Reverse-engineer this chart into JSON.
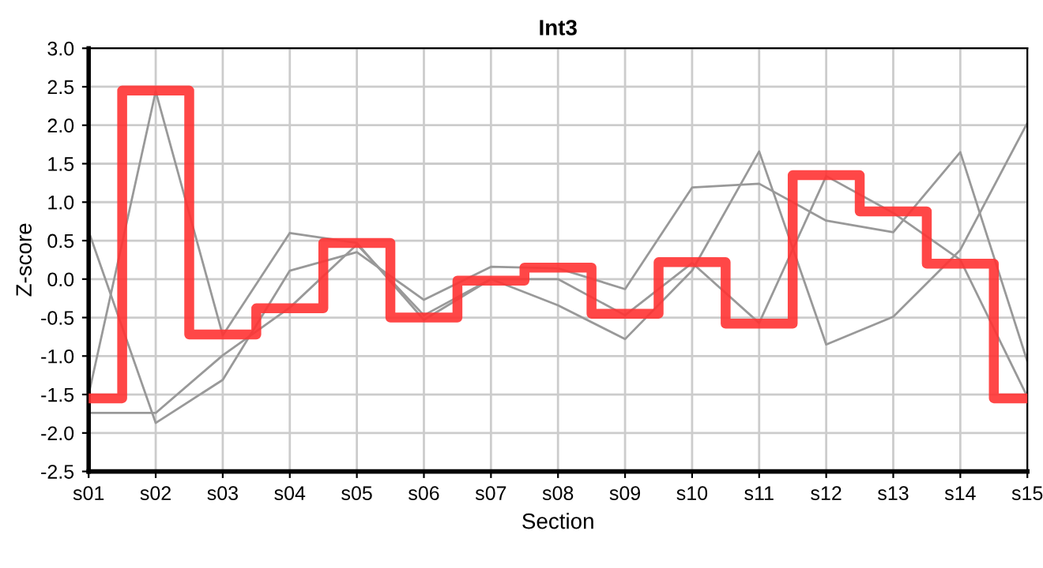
{
  "chart_data": {
    "type": "line",
    "title": "Int3",
    "xlabel": "Section",
    "ylabel": "Z-score",
    "categories": [
      "s01",
      "s02",
      "s03",
      "s04",
      "s05",
      "s06",
      "s07",
      "s08",
      "s09",
      "s10",
      "s11",
      "s12",
      "s13",
      "s14",
      "s15"
    ],
    "series": [
      {
        "color": "#999999",
        "values": [
          0.62,
          -1.87,
          -1.31,
          0.11,
          0.35,
          -0.27,
          0.16,
          0.14,
          -0.13,
          1.19,
          1.24,
          0.76,
          0.61,
          1.65,
          -1.07
        ]
      },
      {
        "color": "#999999",
        "values": [
          -1.74,
          -1.74,
          -0.99,
          -0.37,
          0.45,
          -0.47,
          0.0,
          -0.34,
          -0.78,
          0.11,
          1.66,
          -0.85,
          -0.49,
          0.38,
          2.03
        ]
      },
      {
        "color": "#999999",
        "values": [
          -1.5,
          2.44,
          -0.73,
          0.6,
          0.47,
          -0.53,
          0.0,
          0.0,
          -0.47,
          0.21,
          -0.57,
          1.34,
          0.86,
          0.25,
          -1.53
        ]
      },
      {
        "type": "step",
        "color": "#ff3333",
        "values": [
          -1.55,
          2.45,
          -0.72,
          -0.38,
          0.47,
          -0.5,
          -0.02,
          0.15,
          -0.45,
          0.22,
          -0.58,
          1.35,
          0.88,
          0.2,
          -1.55
        ]
      }
    ],
    "ylim": [
      -2.5,
      3.0
    ],
    "yticks": [
      {
        "value": -2.5,
        "label": "-2.5"
      },
      {
        "value": -2,
        "label": "-2.0"
      },
      {
        "value": -1.5,
        "label": "-1.5"
      },
      {
        "value": -1,
        "label": "-1.0"
      },
      {
        "value": -0.5,
        "label": "-0.5"
      },
      {
        "value": 0,
        "label": "0.0"
      },
      {
        "value": 0.5,
        "label": "0.5"
      },
      {
        "value": 1,
        "label": "1.0"
      },
      {
        "value": 1.5,
        "label": "1.5"
      },
      {
        "value": 2,
        "label": "2.0"
      },
      {
        "value": 2.5,
        "label": "2.5"
      },
      {
        "value": 3,
        "label": "3.0"
      }
    ],
    "grid": true,
    "legend": false,
    "marker": "none"
  }
}
